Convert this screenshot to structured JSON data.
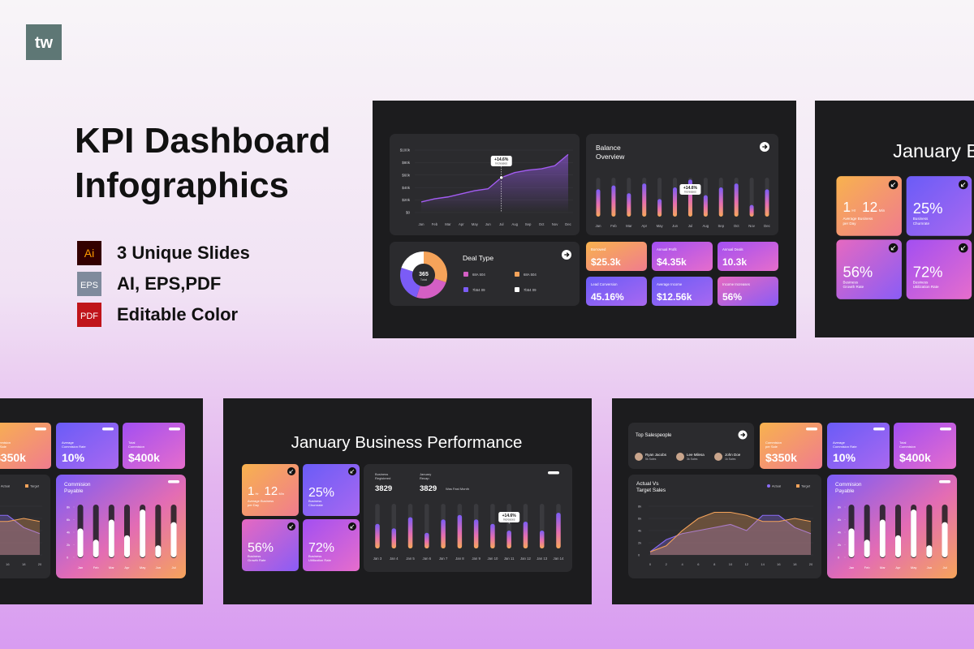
{
  "logo": "tw",
  "header": {
    "title": [
      "KPI Dashboard",
      "Infographics"
    ]
  },
  "features": [
    {
      "badge": "Ai",
      "text": "3 Unique Slides"
    },
    {
      "badge": "EPS",
      "text": "AI, EPS,PDF"
    },
    {
      "badge": "PDF",
      "text": "Editable Color"
    }
  ],
  "slide_overview": {
    "growth": {
      "ylim": [
        0,
        100
      ],
      "yticks": [
        {
          "value": 100,
          "label": "$100k"
        },
        {
          "value": 80,
          "label": "$80k"
        },
        {
          "value": 60,
          "label": "$60k"
        },
        {
          "value": 40,
          "label": "$40k"
        },
        {
          "value": 20,
          "label": "$20k"
        },
        {
          "value": 0,
          "label": "$0"
        }
      ],
      "months": [
        "Jan",
        "Feb",
        "Mar",
        "Apr",
        "May",
        "Jun",
        "Jul",
        "Aug",
        "Sep",
        "Oct",
        "Nov",
        "Dec"
      ],
      "values": [
        17,
        22,
        25,
        30,
        35,
        38,
        56,
        64,
        68,
        70,
        75,
        93
      ],
      "tooltip": {
        "change": "+14.6%",
        "label": "Increases"
      }
    },
    "balance": {
      "title": [
        "Balance",
        "Overview"
      ],
      "months": [
        "Jan",
        "Feb",
        "Mar",
        "Apr",
        "May",
        "Jun",
        "Jul",
        "Aug",
        "Sep",
        "Oct",
        "Nov",
        "Dec"
      ],
      "values": [
        70,
        80,
        60,
        85,
        45,
        75,
        95,
        55,
        75,
        85,
        30,
        70
      ],
      "tooltip": {
        "change": "+14.6%",
        "label": "Increases"
      }
    },
    "deal_type": {
      "title": "Deal Type",
      "total": 365,
      "total_label": "Total",
      "segments": [
        {
          "label": "68A 504",
          "color": "#d45fc4",
          "share": 25
        },
        {
          "label": "68A 504",
          "color": "#f5a35a",
          "share": 30
        },
        {
          "label": "7b54 09",
          "color": "#7b5cf6",
          "share": 25
        },
        {
          "label": "7b54 09",
          "color": "#ffffff",
          "share": 20
        }
      ]
    },
    "kpis": [
      {
        "label": "Borrowed",
        "value": "$25.3k"
      },
      {
        "label": "Annual Profit",
        "value": "$4.35k"
      },
      {
        "label": "Annual Deals",
        "value": "10.3k"
      },
      {
        "label": "Lead Conversion",
        "value": "45.16%"
      },
      {
        "label": "Average Income",
        "value": "$12.56k"
      },
      {
        "label": "Income Increases",
        "value": "56%"
      }
    ]
  },
  "slide_performance": {
    "title": "January Business Performance",
    "cards": [
      {
        "time": [
          {
            "value": 1,
            "unit": "Hr"
          },
          {
            "value": 12,
            "unit": "Min"
          }
        ],
        "label": [
          "Average Business",
          "per Day"
        ]
      },
      {
        "value": "25%",
        "label": [
          "Business",
          "Churnrate"
        ]
      },
      {
        "value": "56%",
        "label": [
          "Business",
          "Growth Rate"
        ]
      },
      {
        "value": "72%",
        "label": [
          "Business",
          "Uitilization Rate"
        ]
      }
    ],
    "stats": [
      {
        "label": [
          "Business",
          "Registered"
        ],
        "value": 3829
      },
      {
        "label": [
          "January",
          "Recap"
        ],
        "value": 3829,
        "note": "Was Fast Month"
      }
    ],
    "days": [
      "Jan 3",
      "Jan 4",
      "Jan 5",
      "Jan 6",
      "Jan 7",
      "Jan 8",
      "Jan 9",
      "Jan 10",
      "Jan 11",
      "Jan 12",
      "Jan 13",
      "Jan 14"
    ],
    "values": [
      55,
      45,
      70,
      35,
      65,
      75,
      65,
      55,
      40,
      60,
      40,
      80
    ],
    "tooltip": {
      "change": "+14.6%",
      "label": "Increases"
    }
  },
  "slide_sales": {
    "top_salespeople": {
      "title": "Top Salespeople",
      "people": [
        {
          "name": "Ryan Jacobs",
          "sales": "5k Sales"
        },
        {
          "name": "Lee Milesa",
          "sales": "3k Sales"
        },
        {
          "name": "John Doe",
          "sales": "1k Sales"
        }
      ]
    },
    "cards": [
      {
        "label": [
          "Commision",
          "per Sale"
        ],
        "value": "$350k"
      },
      {
        "label": [
          "Average",
          "Commision Rate"
        ],
        "value": "10%"
      },
      {
        "label": [
          "Total",
          "Commision"
        ],
        "value": "$400k"
      }
    ],
    "actual_vs_target": {
      "title": [
        "Actual Vs",
        "Target Sales"
      ],
      "x": [
        0,
        2,
        4,
        6,
        8,
        10,
        12,
        14,
        16,
        18,
        20
      ],
      "xlim": [
        0,
        20
      ],
      "xticks": [
        0,
        2,
        4,
        6,
        8,
        10,
        12,
        14,
        16,
        18,
        20
      ],
      "ylim": [
        0,
        8000
      ],
      "yticks": [
        {
          "value": 8000,
          "label": "8k"
        },
        {
          "value": 6000,
          "label": "6k"
        },
        {
          "value": 4000,
          "label": "4k"
        },
        {
          "value": 2000,
          "label": "2k"
        },
        0
      ],
      "series": [
        {
          "name": "Actual",
          "color": "#8b6cf6",
          "values": [
            500,
            2500,
            3500,
            4000,
            4500,
            5000,
            4000,
            6500,
            6500,
            4500,
            3500
          ]
        },
        {
          "name": "Target",
          "color": "#f5a35a",
          "values": [
            500,
            1500,
            4000,
            6000,
            7000,
            7000,
            6500,
            5500,
            5500,
            6000,
            5500
          ]
        }
      ]
    },
    "payable": {
      "title": [
        "Commision",
        "Payable"
      ],
      "months": [
        "Jan",
        "Feb",
        "Mar",
        "Apr",
        "May",
        "Jun",
        "Jul"
      ],
      "ylim": [
        0,
        8000
      ],
      "yticks": [
        {
          "value": 8000,
          "label": "8k"
        },
        {
          "value": 6000,
          "label": "6k"
        },
        {
          "value": 4000,
          "label": "4k"
        },
        {
          "value": 2000,
          "label": "2k"
        },
        0
      ],
      "values": [
        4600,
        2800,
        6000,
        3500,
        7600,
        1900,
        5600
      ]
    }
  }
}
